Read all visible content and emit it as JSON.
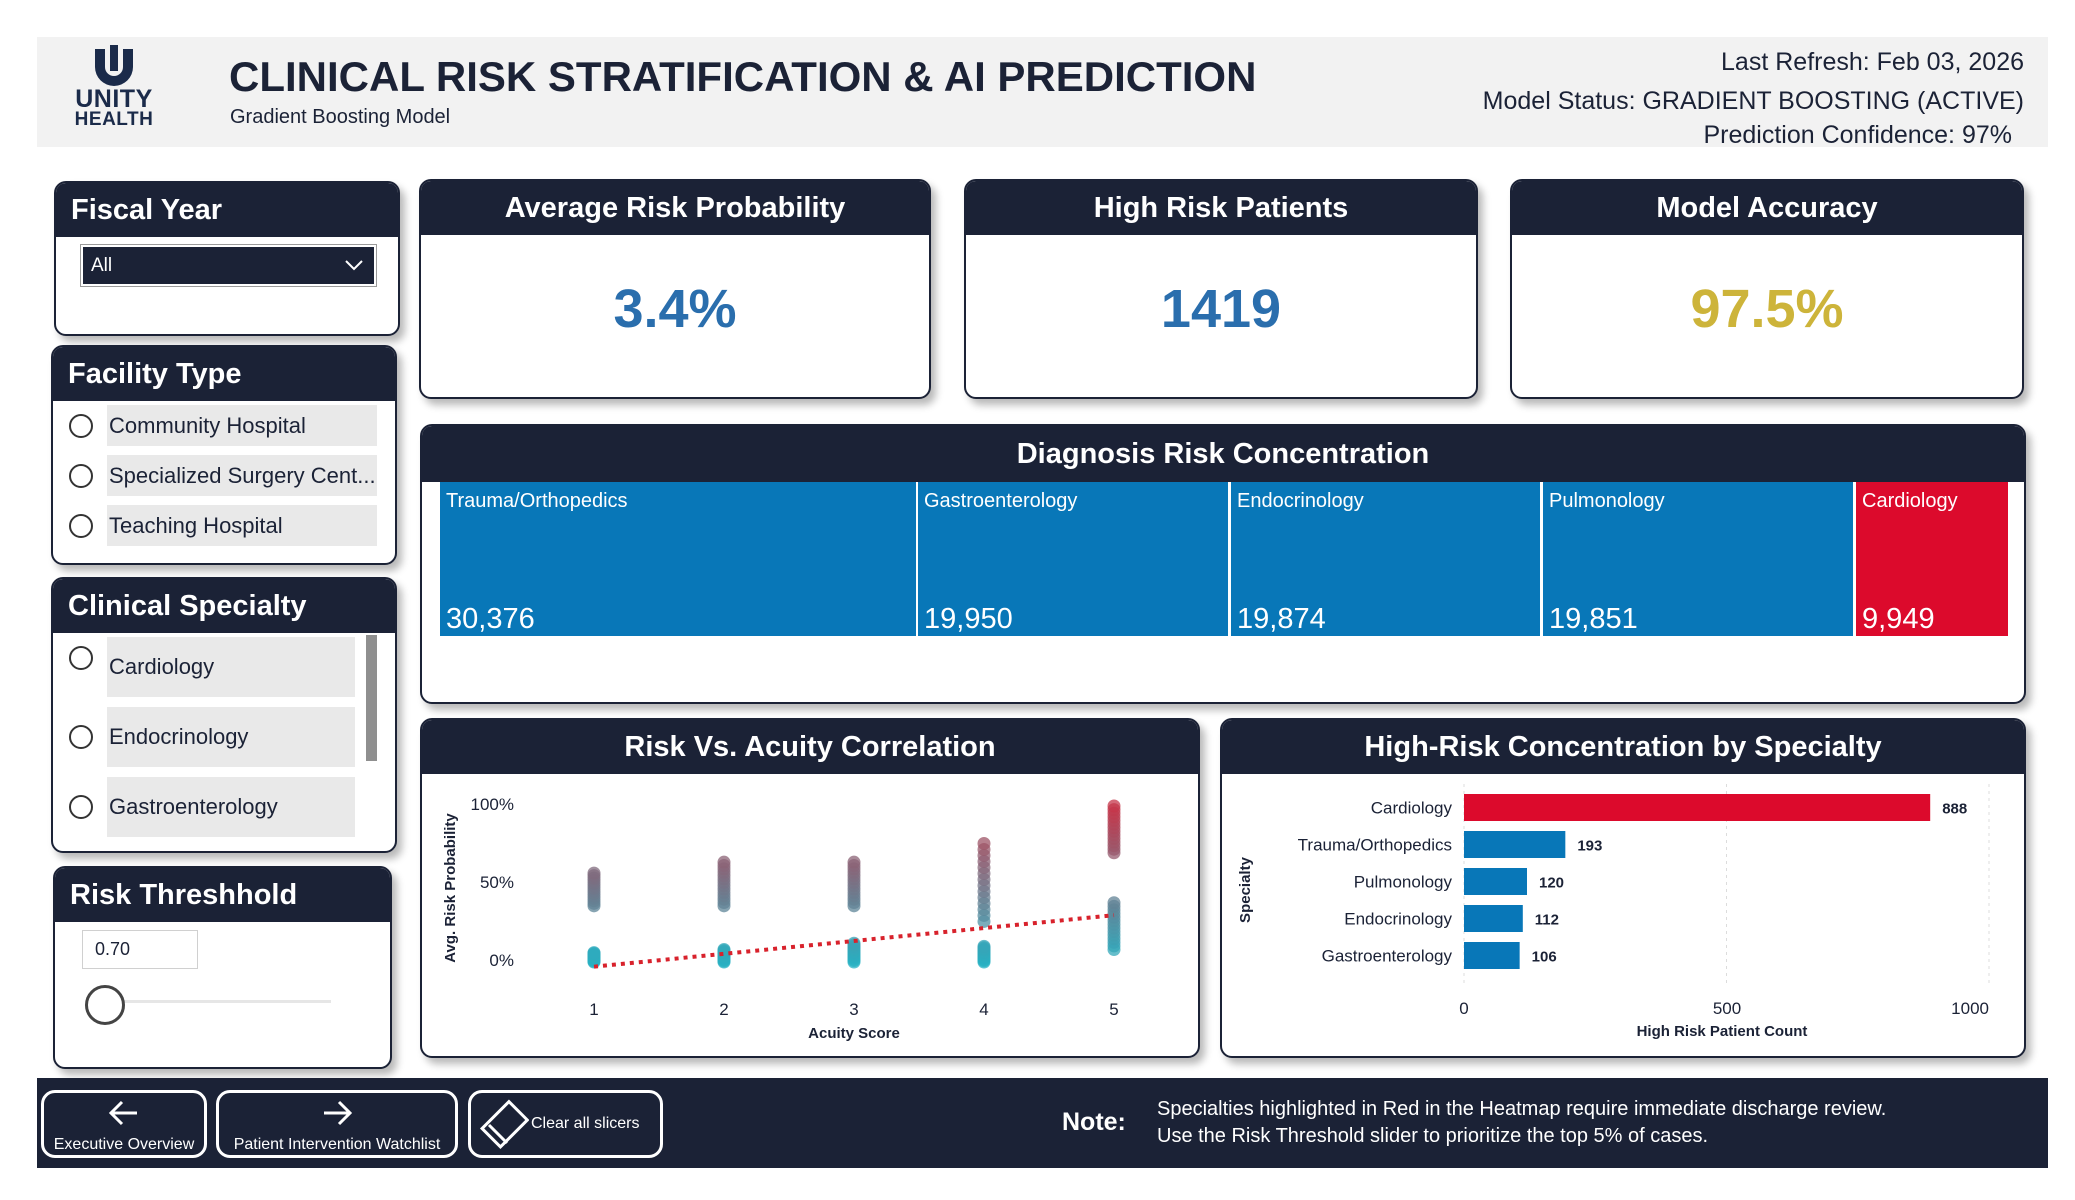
{
  "header": {
    "logo_line1": "UNITY",
    "logo_line2": "HEALTH",
    "title": "CLINICAL RISK STRATIFICATION & AI PREDICTION",
    "subtitle": "Gradient Boosting Model",
    "last_refresh": "Last Refresh: Feb 03, 2026",
    "model_status": "Model Status: GRADIENT BOOSTING (ACTIVE)",
    "prediction_confidence": "Prediction Confidence: 97%"
  },
  "slicers": {
    "fiscal_year": {
      "title": "Fiscal Year",
      "selected": "All",
      "icon": "chevron-down-icon"
    },
    "facility_type": {
      "title": "Facility Type",
      "options": [
        "Community Hospital",
        "Specialized Surgery Cent...",
        "Teaching Hospital"
      ]
    },
    "clinical_specialty": {
      "title": "Clinical Specialty",
      "options": [
        "Cardiology",
        "Endocrinology",
        "Gastroenterology"
      ]
    },
    "risk_threshold": {
      "title": "Risk Threshhold",
      "value": "0.70"
    }
  },
  "kpis": [
    {
      "title": "Average Risk Probability",
      "value": "3.4%",
      "color": "#2a6ead"
    },
    {
      "title": "High Risk Patients",
      "value": "1419",
      "color": "#2a6ead"
    },
    {
      "title": "Model Accuracy",
      "value": "97.5%",
      "color": "#cdb43a"
    }
  ],
  "treemap": {
    "title": "Diagnosis Risk Concentration",
    "items": [
      {
        "label": "Trauma/Orthopedics",
        "value": "30,376",
        "color": "#0877b8"
      },
      {
        "label": "Gastroenterology",
        "value": "19,950",
        "color": "#0877b8"
      },
      {
        "label": "Endocrinology",
        "value": "19,874",
        "color": "#0877b8"
      },
      {
        "label": "Pulmonology",
        "value": "19,851",
        "color": "#0877b8"
      },
      {
        "label": "Cardiology",
        "value": "9,949",
        "color": "#dc0a2c"
      }
    ]
  },
  "scatter": {
    "title": "Risk Vs. Acuity Correlation",
    "xlabel": "Acuity Score",
    "ylabel": "Avg. Risk Probability",
    "ytick_labels": [
      "100%",
      "50%",
      "0%"
    ],
    "xtick_labels": [
      "1",
      "2",
      "3",
      "4",
      "5"
    ]
  },
  "bar": {
    "title": "High-Risk Concentration by Specialty",
    "xlabel": "High Risk Patient Count",
    "ylabel": "Specialty",
    "xtick_labels": [
      "0",
      "500",
      "1000"
    ]
  },
  "chart_data": [
    {
      "type": "scatter",
      "title": "Risk Vs. Acuity Correlation",
      "xlabel": "Acuity Score",
      "ylabel": "Avg. Risk Probability",
      "xlim": [
        1,
        5
      ],
      "ylim": [
        0,
        1
      ],
      "groups": [
        {
          "x": 1,
          "y_low": [
            0.0,
            0.06
          ],
          "y_high": [
            0.36,
            0.57
          ]
        },
        {
          "x": 2,
          "y_low": [
            0.0,
            0.08
          ],
          "y_high": [
            0.36,
            0.64
          ]
        },
        {
          "x": 3,
          "y_low": [
            0.0,
            0.12
          ],
          "y_high": [
            0.36,
            0.64
          ]
        },
        {
          "x": 4,
          "y_low": [
            0.0,
            0.1
          ],
          "y_high": [
            0.26,
            0.76
          ]
        },
        {
          "x": 5,
          "y_low": [
            0.08,
            0.38
          ],
          "y_high": [
            0.7,
            1.0
          ]
        }
      ],
      "trendline": {
        "x": [
          1,
          5
        ],
        "y": [
          -0.03,
          0.3
        ],
        "color": "#d8222c",
        "style": "dotted"
      }
    },
    {
      "type": "bar",
      "orientation": "horizontal",
      "title": "High-Risk Concentration by Specialty",
      "xlabel": "High Risk Patient Count",
      "ylabel": "Specialty",
      "categories": [
        "Cardiology",
        "Trauma/Orthopedics",
        "Pulmonology",
        "Endocrinology",
        "Gastroenterology"
      ],
      "values": [
        888,
        193,
        120,
        112,
        106
      ],
      "colors": [
        "#dc0a2c",
        "#0877b8",
        "#0877b8",
        "#0877b8",
        "#0877b8"
      ],
      "xlim": [
        0,
        1000
      ]
    }
  ],
  "footer": {
    "buttons": [
      {
        "label": "Executive Overview",
        "icon": "arrow-left-icon"
      },
      {
        "label": "Patient Intervention Watchlist",
        "icon": "arrow-right-icon"
      },
      {
        "label": "Clear all slicers",
        "icon": "eraser-icon"
      }
    ],
    "note_label": "Note:",
    "note_line1": "Specialties highlighted in Red in the Heatmap require immediate discharge review.",
    "note_line2": "Use the Risk Threshold slider to prioritize the top 5% of cases."
  }
}
